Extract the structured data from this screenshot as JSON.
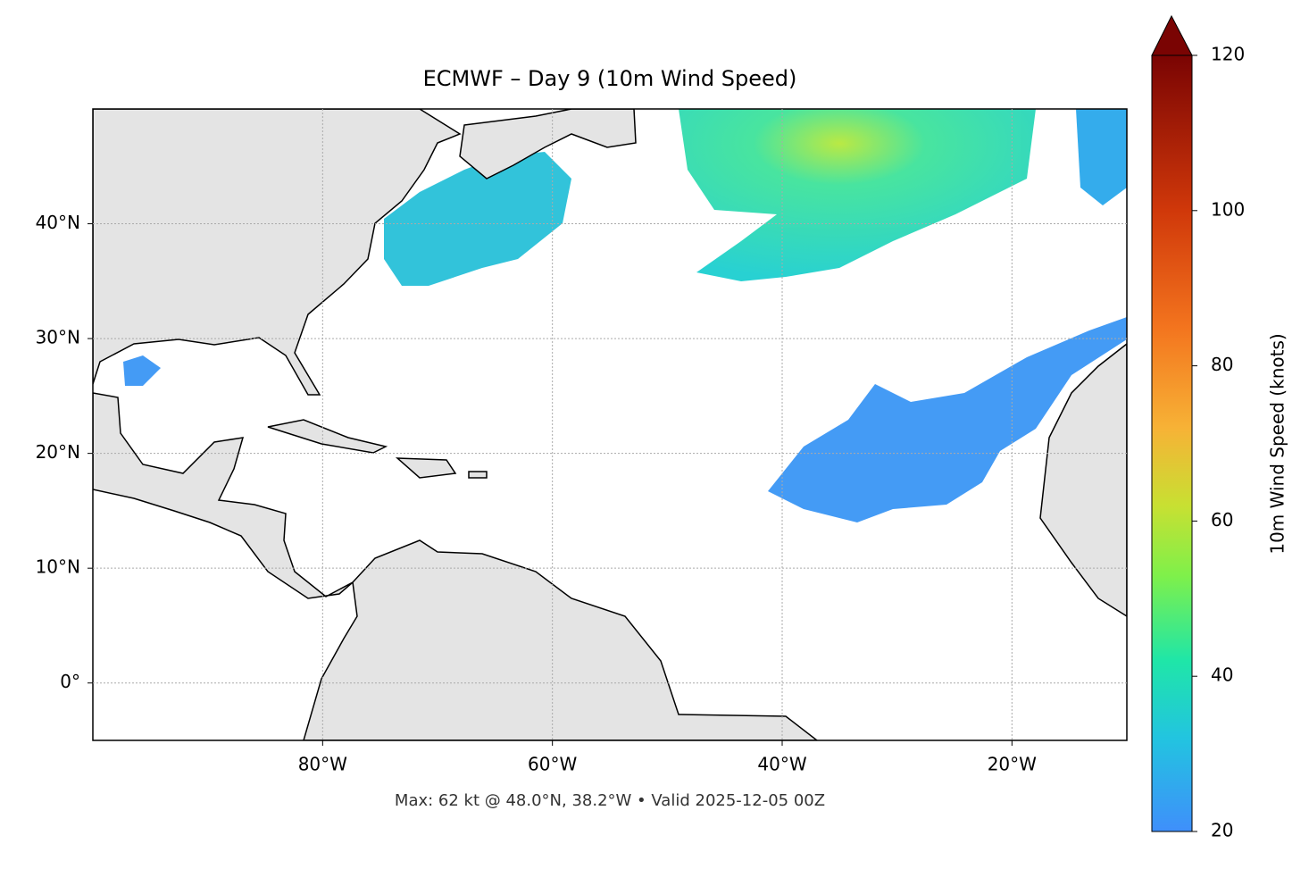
{
  "chart_data": {
    "type": "map",
    "title": "ECMWF – Day 9 (10m Wind Speed)",
    "footnote": "Max: 62 kt @ 48.0°N, 38.2°W • Valid 2025-12-05 00Z",
    "xlim": [
      -100,
      -10
    ],
    "ylim": [
      -5,
      50
    ],
    "xticks": [
      {
        "value": -80,
        "label": "80°W"
      },
      {
        "value": -60,
        "label": "60°W"
      },
      {
        "value": -40,
        "label": "40°W"
      },
      {
        "value": -20,
        "label": "20°W"
      }
    ],
    "yticks": [
      {
        "value": 0,
        "label": "0°"
      },
      {
        "value": 10,
        "label": "10°N"
      },
      {
        "value": 20,
        "label": "20°N"
      },
      {
        "value": 30,
        "label": "30°N"
      },
      {
        "value": 40,
        "label": "40°N"
      }
    ],
    "grid": true,
    "colorbar": {
      "label": "10m Wind Speed (knots)",
      "lim": [
        20,
        120
      ],
      "ticks": [
        20,
        40,
        60,
        80,
        100,
        120
      ]
    }
  }
}
